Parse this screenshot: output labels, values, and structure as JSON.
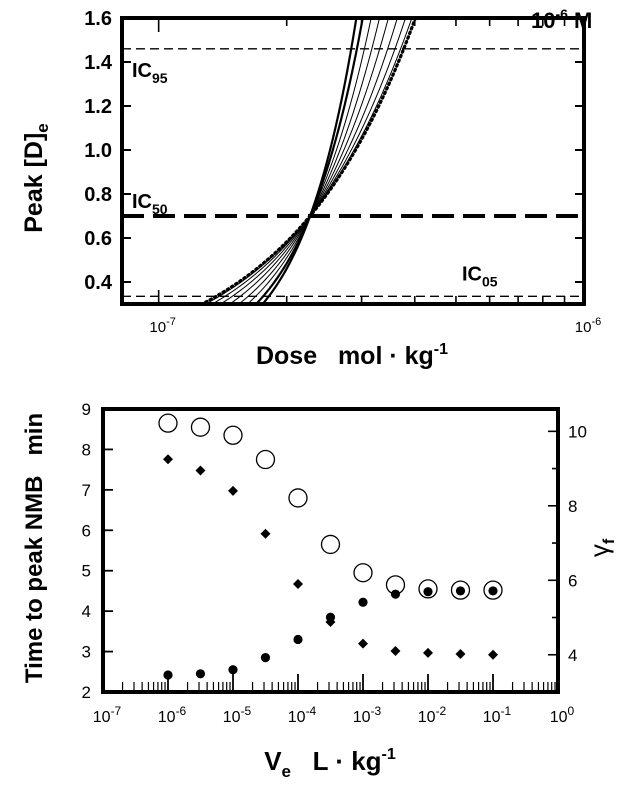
{
  "chart_data": [
    {
      "type": "line",
      "xscale": "log",
      "xlim": [
        8.2e-08,
        1e-06
      ],
      "ylim": [
        0.3,
        1.6
      ],
      "xlabel": "Dose   mol · kg",
      "xlabel_sup": "-1",
      "ylabel": "Peak [D]",
      "ylabel_sub": "e",
      "ylabel_right": "10",
      "ylabel_right_sup": "-6",
      "ylabel_right_unit": " M",
      "yticks": [
        0.4,
        0.6,
        0.8,
        1.0,
        1.2,
        1.4,
        1.6
      ],
      "ytick_labels": [
        "0.4",
        "0.6",
        "0.8",
        "1.0",
        "1.2",
        "1.4",
        "1.6"
      ],
      "xtick_labels": [
        {
          "x": 1e-07,
          "base": "10",
          "exp": "-7"
        },
        {
          "x": 1e-06,
          "base": "10",
          "exp": "-6"
        }
      ],
      "thresholds": [
        {
          "name": "IC",
          "sub": "95",
          "value": 1.46,
          "style": "thin-dashed"
        },
        {
          "name": "IC",
          "sub": "50",
          "value": 0.7,
          "style": "thick-dashed"
        },
        {
          "name": "IC",
          "sub": "05",
          "value": 0.335,
          "style": "thin-dashed"
        }
      ],
      "pivot": {
        "dose": 2.27e-07,
        "value": 0.7
      },
      "series": [
        {
          "slope": 3.3,
          "style": "bold"
        },
        {
          "slope": 2.9,
          "style": "bold"
        },
        {
          "slope": 2.5,
          "style": "thin"
        },
        {
          "slope": 2.2,
          "style": "thin"
        },
        {
          "slope": 1.95,
          "style": "thin"
        },
        {
          "slope": 1.75,
          "style": "thin"
        },
        {
          "slope": 1.6,
          "style": "thin"
        },
        {
          "slope": 1.5,
          "style": "thin"
        },
        {
          "slope": 1.45,
          "style": "dotted"
        }
      ]
    },
    {
      "type": "scatter",
      "xscale": "log",
      "xlim": [
        1e-07,
        1
      ],
      "ylim": [
        2,
        9
      ],
      "y2lim": [
        3,
        10.6
      ],
      "xlabel": "V",
      "xlabel_sub": "e",
      "xlabel_unit": "   L · kg",
      "xlabel_sup": "-1",
      "ylabel": "Time to peak NMB   min",
      "y2label": "γ",
      "y2label_sub": "f",
      "yticks": [
        2,
        3,
        4,
        5,
        6,
        7,
        8,
        9
      ],
      "ytick_labels": [
        "2",
        "3",
        "4",
        "5",
        "6",
        "7",
        "8",
        "9"
      ],
      "y2ticks": [
        4,
        6,
        8,
        10
      ],
      "y2tick_labels": [
        "4",
        "6",
        "8",
        "10"
      ],
      "xtick_labels": [
        {
          "x": 1e-07,
          "base": "10",
          "exp": "-7"
        },
        {
          "x": 1e-06,
          "base": "10",
          "exp": "-6"
        },
        {
          "x": 1e-05,
          "base": "10",
          "exp": "-5"
        },
        {
          "x": 0.0001,
          "base": "10",
          "exp": "-4"
        },
        {
          "x": 0.001,
          "base": "10",
          "exp": "-3"
        },
        {
          "x": 0.01,
          "base": "10",
          "exp": "-2"
        },
        {
          "x": 0.1,
          "base": "10",
          "exp": "-1"
        },
        {
          "x": 1,
          "base": "10",
          "exp": "0"
        }
      ],
      "x": [
        1e-06,
        3.16e-06,
        1e-05,
        3.16e-05,
        0.0001,
        0.000316,
        0.001,
        0.00316,
        0.01,
        0.0316,
        0.1
      ],
      "series": [
        {
          "marker": "open-circle",
          "axis": "left",
          "values": [
            8.65,
            8.55,
            8.35,
            7.75,
            6.8,
            5.65,
            4.95,
            4.65,
            4.55,
            4.52,
            4.52
          ]
        },
        {
          "marker": "filled-circle",
          "axis": "left",
          "values": [
            2.42,
            2.45,
            2.55,
            2.85,
            3.3,
            3.85,
            4.22,
            4.42,
            4.48,
            4.5,
            4.5
          ]
        },
        {
          "marker": "filled-diamond",
          "axis": "right",
          "values": [
            9.25,
            8.95,
            8.4,
            7.25,
            5.9,
            4.88,
            4.3,
            4.1,
            4.05,
            4.02,
            4.0
          ]
        }
      ]
    }
  ]
}
